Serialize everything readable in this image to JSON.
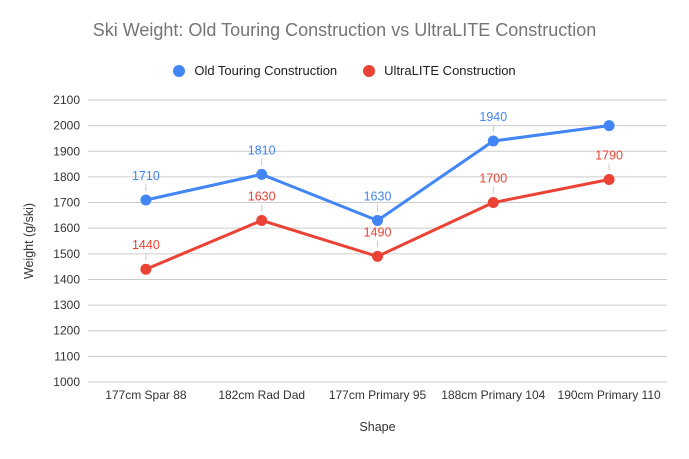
{
  "title": "Ski Weight: Old Touring Construction vs UltraLITE Construction",
  "chart_data": {
    "type": "line",
    "categories": [
      "177cm Spar 88",
      "182cm Rad Dad",
      "177cm Primary 95",
      "188cm Primary 104",
      "190cm Primary 110"
    ],
    "series": [
      {
        "name": "Old Touring Construction",
        "color": "#4285f4",
        "values": [
          1710,
          1810,
          1630,
          1940,
          2000
        ],
        "labels": [
          "1710",
          "1810",
          "1630",
          "1940",
          ""
        ]
      },
      {
        "name": "UltraLITE Construction",
        "color": "#ea4335",
        "values": [
          1440,
          1630,
          1490,
          1700,
          1790
        ],
        "labels": [
          "1440",
          "1630",
          "1490",
          "1700",
          "1790"
        ]
      }
    ],
    "xlabel": "Shape",
    "ylabel": "Weight (g/ski)",
    "ylim": [
      1000,
      2100
    ],
    "ytick_step": 100,
    "grid": true,
    "legend_position": "top",
    "colors": {
      "background": "#ffffff",
      "grid": "#cccccc",
      "axis_text": "#333333",
      "title_text": "#757575",
      "leader_line": "#c9c9c9"
    }
  }
}
